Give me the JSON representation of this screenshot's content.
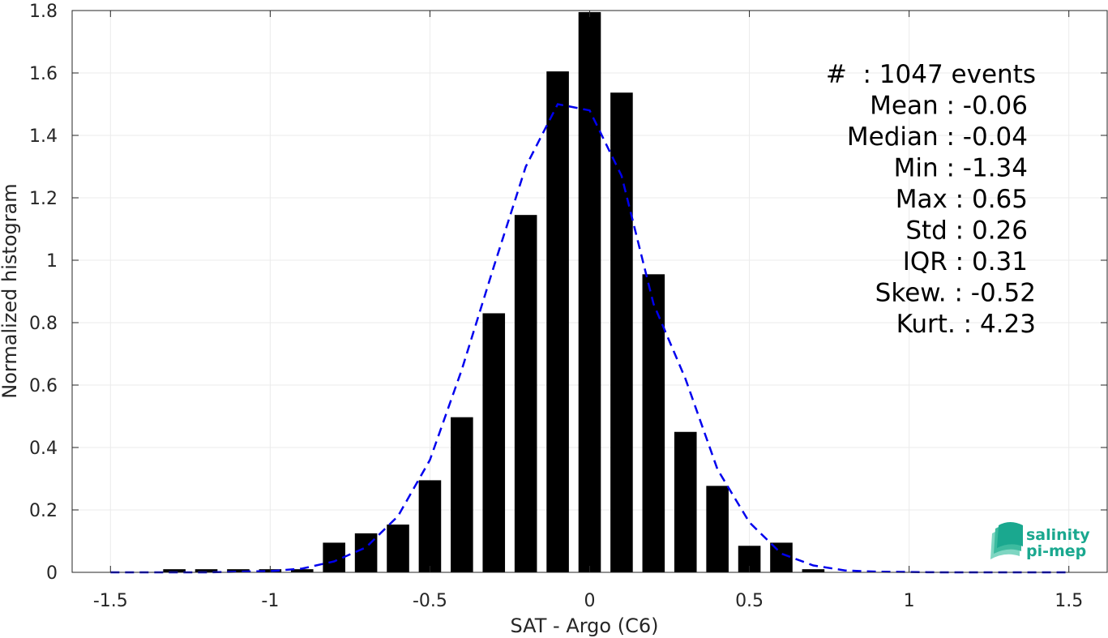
{
  "chart_data": {
    "type": "bar",
    "xlabel": "SAT - Argo (C6)",
    "ylabel": "Normalized histogram",
    "xlim": [
      -1.62,
      1.62
    ],
    "ylim": [
      0,
      1.8
    ],
    "xticks": [
      -1.5,
      -1,
      -0.5,
      0,
      0.5,
      1,
      1.5
    ],
    "xtick_labels": [
      "-1.5",
      "-1",
      "-0.5",
      "0",
      "0.5",
      "1",
      "1.5"
    ],
    "yticks": [
      0,
      0.2,
      0.4,
      0.6,
      0.8,
      1,
      1.2,
      1.4,
      1.6,
      1.8
    ],
    "ytick_labels": [
      "0",
      "0.2",
      "0.4",
      "0.6",
      "0.8",
      "1",
      "1.2",
      "1.4",
      "1.6",
      "1.8"
    ],
    "grid": true,
    "bar_color": "#000000",
    "bar_width": 0.07,
    "bars": {
      "x": [
        -1.5,
        -1.4,
        -1.3,
        -1.2,
        -1.1,
        -1.0,
        -0.9,
        -0.8,
        -0.7,
        -0.6,
        -0.5,
        -0.4,
        -0.3,
        -0.2,
        -0.1,
        0.0,
        0.1,
        0.2,
        0.3,
        0.4,
        0.5,
        0.6,
        0.7,
        0.8,
        0.9,
        1.0,
        1.1,
        1.2,
        1.3,
        1.4,
        1.5
      ],
      "values": [
        0,
        0,
        0.01,
        0.01,
        0.01,
        0.01,
        0.01,
        0.095,
        0.125,
        0.153,
        0.295,
        0.497,
        0.83,
        1.145,
        1.605,
        1.795,
        1.537,
        0.955,
        0.45,
        0.277,
        0.085,
        0.095,
        0.01,
        0,
        0,
        0,
        0,
        0,
        0,
        0,
        0
      ]
    },
    "fit_curve": {
      "style": "dashed",
      "color": "#0000ee",
      "x": [
        -1.5,
        -1.4,
        -1.3,
        -1.2,
        -1.1,
        -1.0,
        -0.9,
        -0.8,
        -0.7,
        -0.6,
        -0.5,
        -0.4,
        -0.3,
        -0.2,
        -0.1,
        0.0,
        0.1,
        0.2,
        0.3,
        0.4,
        0.5,
        0.6,
        0.7,
        0.8,
        0.9,
        1.0,
        1.1,
        1.2,
        1.3,
        1.4,
        1.5
      ],
      "y": [
        0,
        0,
        0,
        0,
        0.002,
        0.004,
        0.012,
        0.035,
        0.08,
        0.18,
        0.36,
        0.65,
        0.98,
        1.3,
        1.5,
        1.48,
        1.27,
        0.86,
        0.62,
        0.33,
        0.16,
        0.06,
        0.022,
        0.006,
        0.002,
        0.001,
        0,
        0,
        0,
        0,
        0
      ]
    },
    "stats": [
      "#  : 1047 events",
      "Mean : -0.06",
      "Median : -0.04",
      "Min : -1.34",
      "Max : 0.65",
      "Std : 0.26",
      "IQR : 0.31",
      "Skew. : -0.52",
      "Kurt. : 4.23"
    ]
  },
  "logo": {
    "line1": "salinity",
    "line2": "pi-mep",
    "color": "#1aa88f"
  }
}
